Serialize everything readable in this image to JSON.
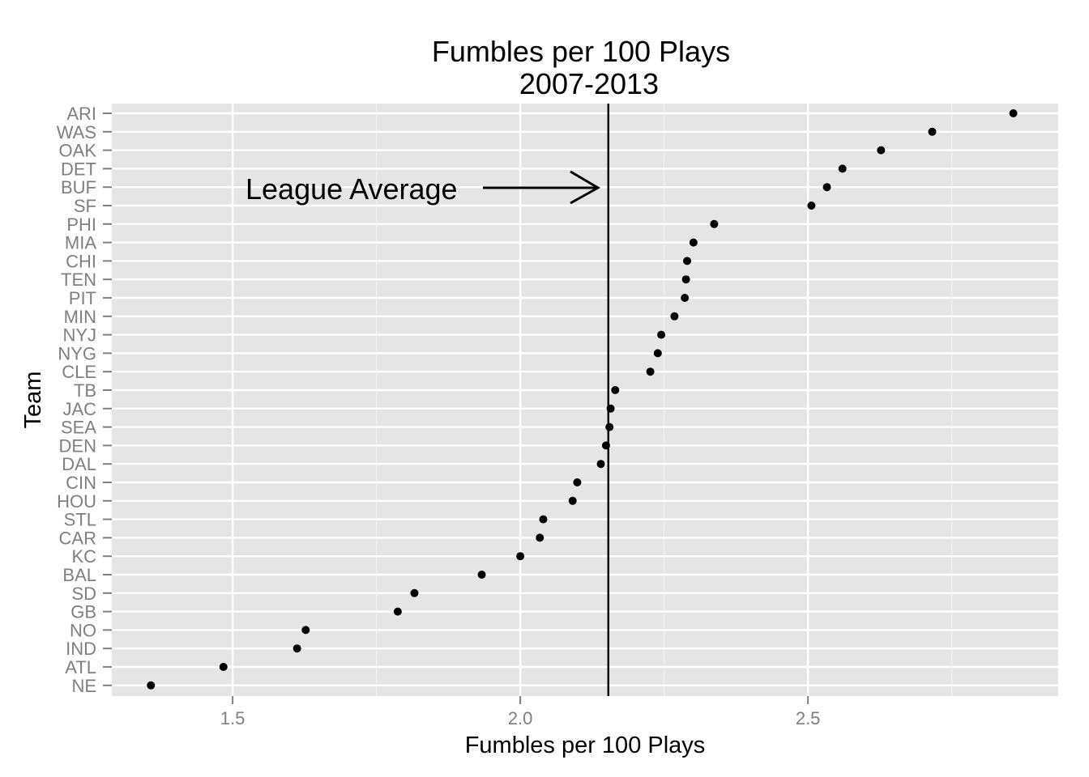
{
  "chart_data": {
    "type": "scatter",
    "title_lines": [
      "Fumbles per 100 Plays",
      "2007-2013"
    ],
    "xlabel": "Fumbles per 100 Plays",
    "ylabel": "Team",
    "xlim": [
      1.29,
      2.935
    ],
    "xticks": [
      1.5,
      2.0,
      2.5
    ],
    "xtick_labels": [
      "1.5",
      "2.0",
      "2.5"
    ],
    "grid": true,
    "panel_background": "#e5e5e5",
    "grid_color": "#ffffff",
    "point_color": "#000000",
    "reference_line": {
      "value": 2.153,
      "color": "#000000",
      "annotation": "League Average"
    },
    "teams": [
      "ARI",
      "WAS",
      "OAK",
      "DET",
      "BUF",
      "SF",
      "PHI",
      "MIA",
      "CHI",
      "TEN",
      "PIT",
      "MIN",
      "NYJ",
      "NYG",
      "CLE",
      "TB",
      "JAC",
      "SEA",
      "DEN",
      "DAL",
      "CIN",
      "HOU",
      "STL",
      "CAR",
      "KC",
      "BAL",
      "SD",
      "GB",
      "NO",
      "IND",
      "ATL",
      "NE"
    ],
    "values": [
      2.857,
      2.716,
      2.627,
      2.56,
      2.533,
      2.506,
      2.337,
      2.301,
      2.29,
      2.288,
      2.286,
      2.268,
      2.245,
      2.239,
      2.226,
      2.165,
      2.157,
      2.155,
      2.149,
      2.14,
      2.099,
      2.091,
      2.04,
      2.034,
      2.0,
      1.933,
      1.816,
      1.787,
      1.627,
      1.612,
      1.484,
      1.358
    ]
  }
}
